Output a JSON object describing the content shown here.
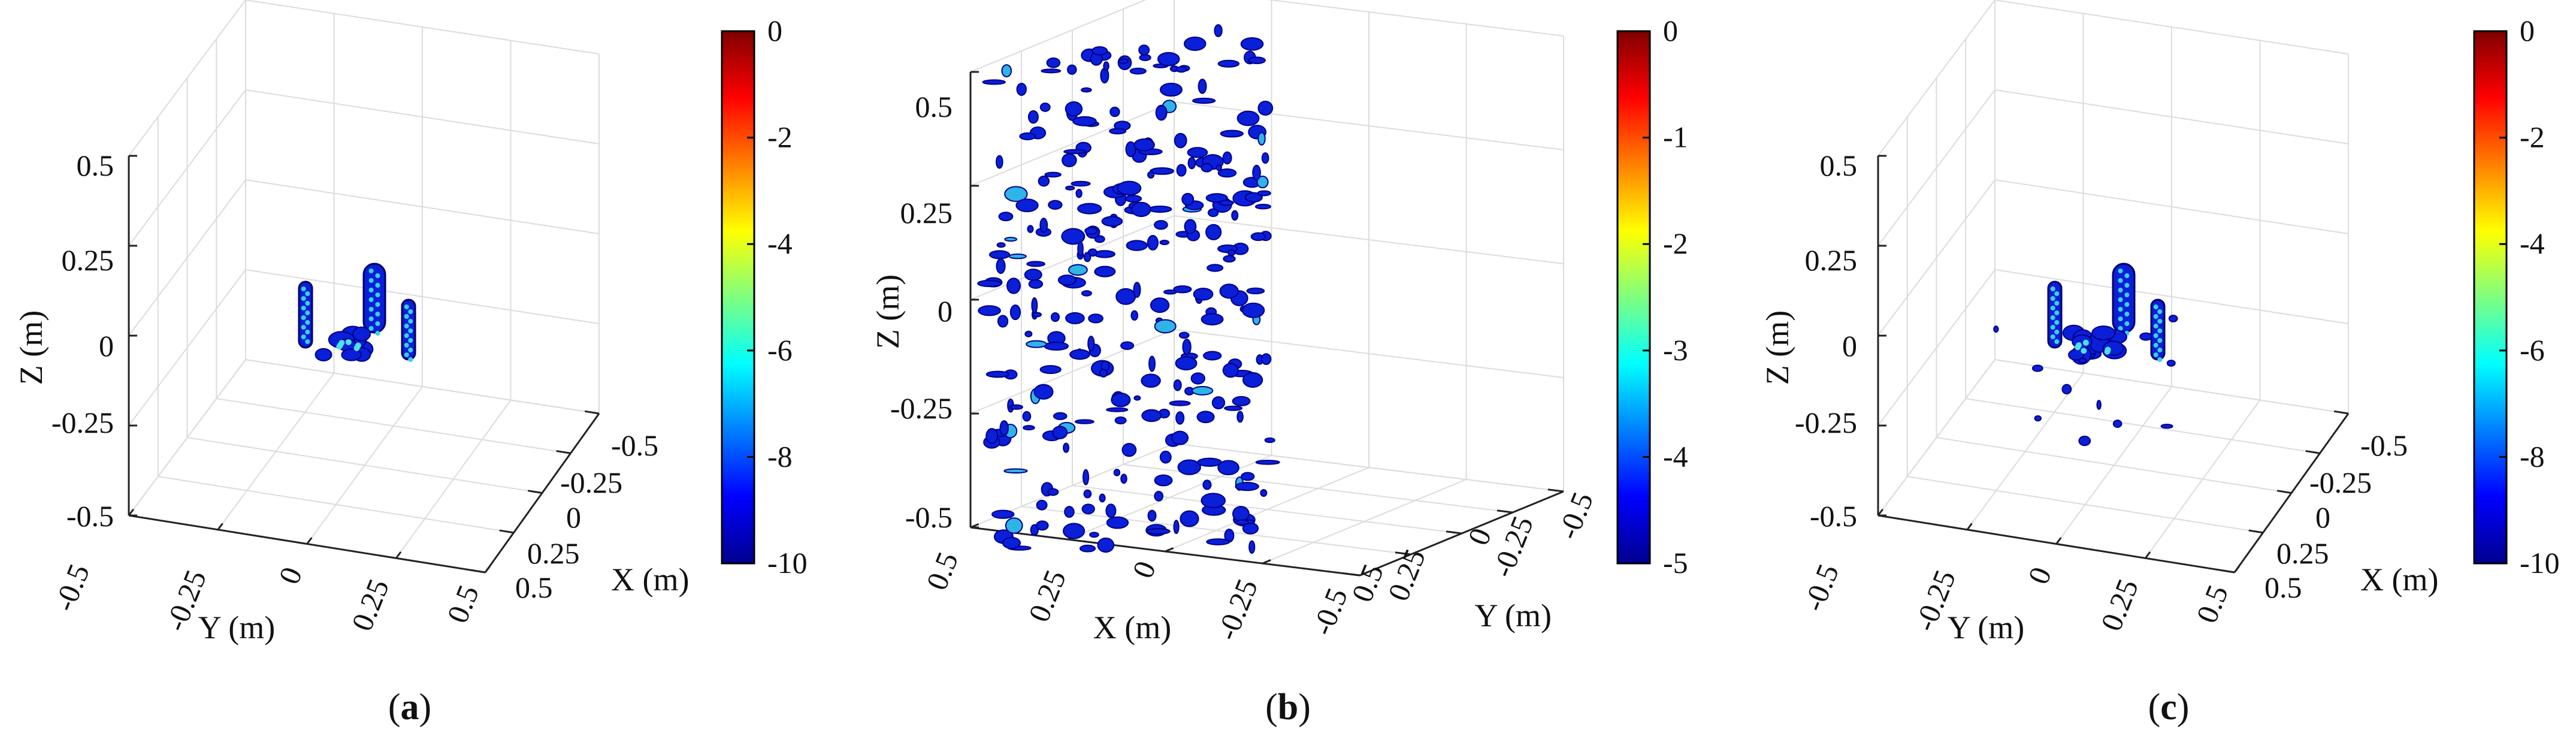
{
  "chart_data": [
    {
      "panel": "a",
      "caption_letter": "a",
      "type": "heatmap",
      "view": "y-front",
      "zlabel": "Z (m)",
      "hlabel": "Y (m)",
      "dlabel": "X (m)",
      "z_ticks": [
        "0.5",
        "0.25",
        "0",
        "-0.25",
        "-0.5"
      ],
      "h_ticks": [
        "-0.5",
        "-0.25",
        "0",
        "0.25",
        "0.5"
      ],
      "d_ticks": [
        "-0.5",
        "-0.25",
        "0",
        "0.25",
        "0.5"
      ],
      "colorbar_ticks": [
        "0",
        "-2",
        "-4",
        "-6",
        "-8",
        "-10"
      ],
      "colorbar_range": [
        -10,
        0
      ],
      "grid": true
    },
    {
      "panel": "b",
      "caption_letter": "b",
      "type": "heatmap",
      "view": "x-front",
      "zlabel": "Z (m)",
      "hlabel": "X (m)",
      "dlabel": "Y (m)",
      "z_ticks": [
        "0.5",
        "0.25",
        "0",
        "-0.25",
        "-0.5"
      ],
      "h_ticks": [
        "0.5",
        "0.25",
        "0",
        "-0.25",
        "-0.5"
      ],
      "d_ticks": [
        "0.5",
        "0.25",
        "0",
        "-0.25",
        "-0.5"
      ],
      "colorbar_ticks": [
        "0",
        "-1",
        "-2",
        "-3",
        "-4",
        "-5"
      ],
      "colorbar_range": [
        -5,
        0
      ],
      "grid": true
    },
    {
      "panel": "c",
      "caption_letter": "c",
      "type": "heatmap",
      "view": "y-front",
      "zlabel": "Z (m)",
      "hlabel": "Y (m)",
      "dlabel": "X (m)",
      "z_ticks": [
        "0.5",
        "0.25",
        "0",
        "-0.25",
        "-0.5"
      ],
      "h_ticks": [
        "-0.5",
        "-0.25",
        "0",
        "0.25",
        "0.5"
      ],
      "d_ticks": [
        "-0.5",
        "-0.25",
        "0",
        "0.25",
        "0.5"
      ],
      "colorbar_ticks": [
        "0",
        "-2",
        "-4",
        "-6",
        "-8",
        "-10"
      ],
      "colorbar_range": [
        -10,
        0
      ],
      "grid": true
    }
  ]
}
